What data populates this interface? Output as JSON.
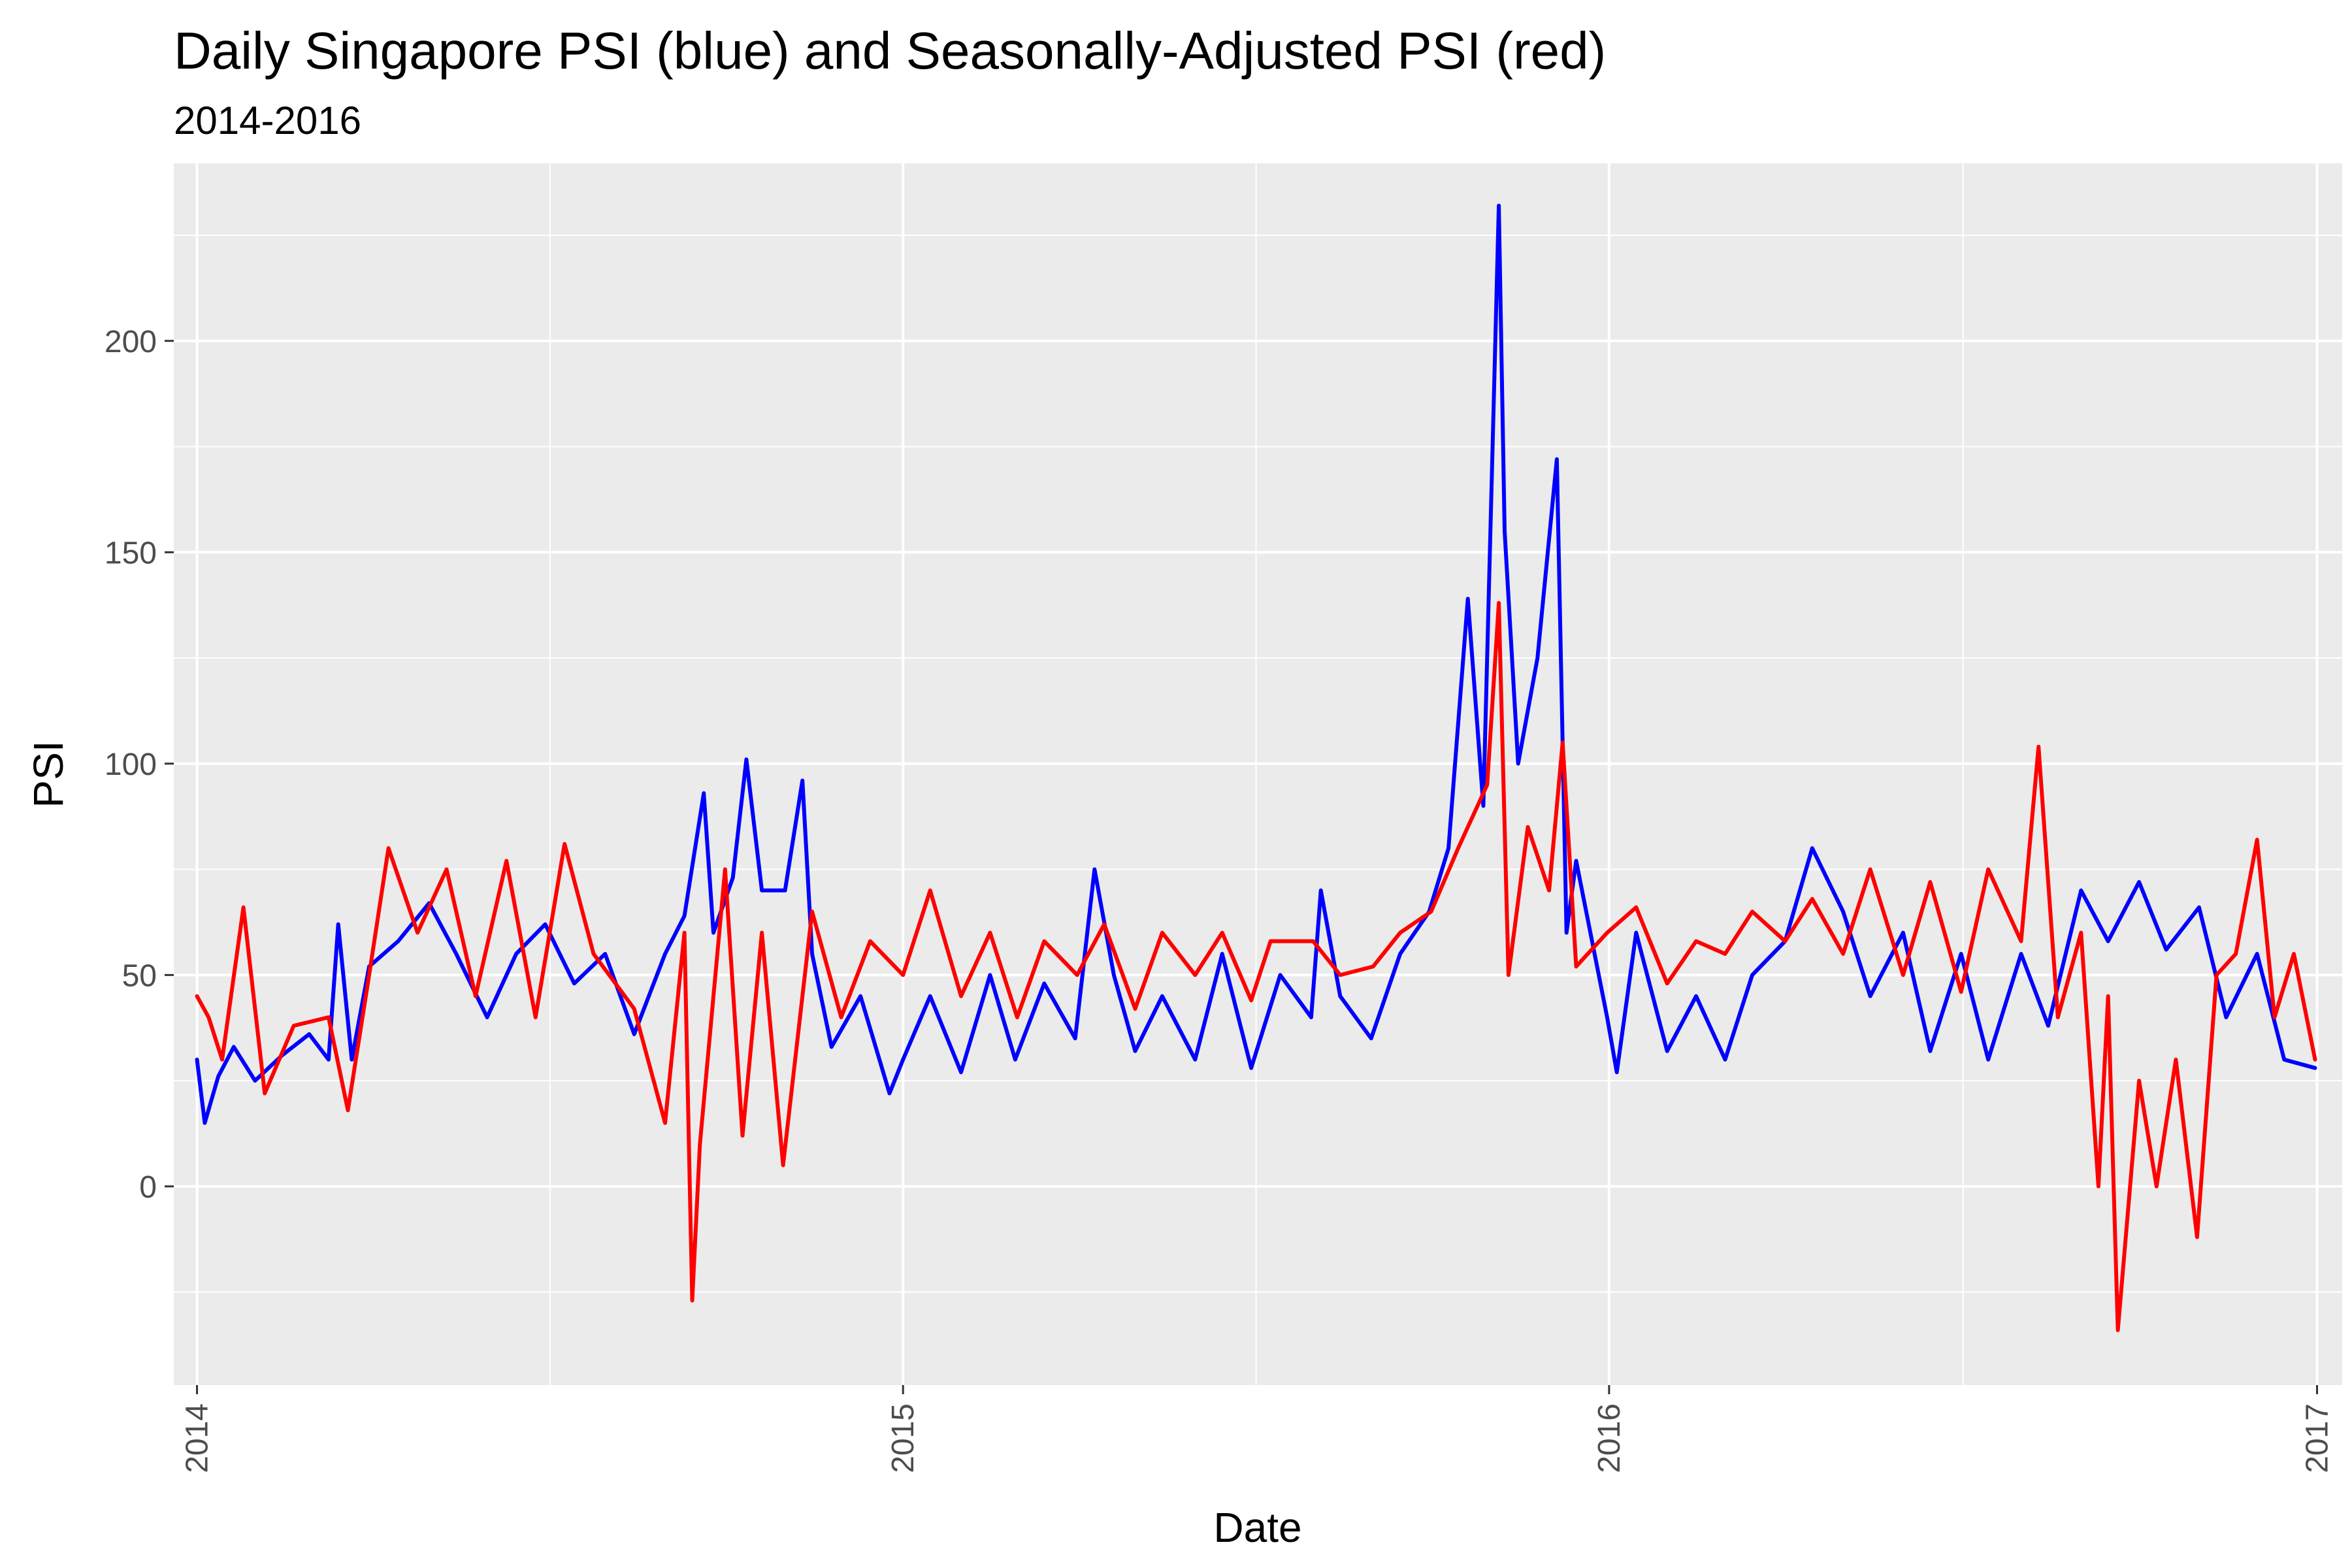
{
  "chart_data": {
    "type": "line",
    "title": "Daily Singapore PSI (blue) and Seasonally-Adjusted PSI (red)",
    "subtitle": "2014-2016",
    "xlabel": "Date",
    "ylabel": "PSI",
    "x_ticks": [
      "2014",
      "2015",
      "2016",
      "2017"
    ],
    "y_ticks": [
      0,
      50,
      100,
      150,
      200
    ],
    "xlim": [
      "2013-12-20",
      "2017-01-14"
    ],
    "ylim": [
      -47,
      242
    ],
    "grid": true,
    "background": "#ebebeb",
    "series": [
      {
        "color": "#0000ff",
        "points": [
          [
            "2014-01-01",
            30
          ],
          [
            "2014-01-05",
            15
          ],
          [
            "2014-01-12",
            26
          ],
          [
            "2014-01-20",
            33
          ],
          [
            "2014-01-31",
            25
          ],
          [
            "2014-02-14",
            31
          ],
          [
            "2014-02-28",
            36
          ],
          [
            "2014-03-10",
            30
          ],
          [
            "2014-03-15",
            62
          ],
          [
            "2014-03-22",
            30
          ],
          [
            "2014-03-31",
            52
          ],
          [
            "2014-04-15",
            58
          ],
          [
            "2014-05-01",
            67
          ],
          [
            "2014-05-15",
            55
          ],
          [
            "2014-05-31",
            40
          ],
          [
            "2014-06-15",
            55
          ],
          [
            "2014-06-30",
            62
          ],
          [
            "2014-07-15",
            48
          ],
          [
            "2014-07-31",
            55
          ],
          [
            "2014-08-15",
            36
          ],
          [
            "2014-08-31",
            55
          ],
          [
            "2014-09-10",
            64
          ],
          [
            "2014-09-20",
            93
          ],
          [
            "2014-09-25",
            60
          ],
          [
            "2014-10-05",
            73
          ],
          [
            "2014-10-12",
            101
          ],
          [
            "2014-10-20",
            70
          ],
          [
            "2014-11-01",
            70
          ],
          [
            "2014-11-10",
            96
          ],
          [
            "2014-11-15",
            55
          ],
          [
            "2014-11-25",
            33
          ],
          [
            "2014-12-10",
            45
          ],
          [
            "2014-12-25",
            22
          ],
          [
            "2015-01-01",
            30
          ],
          [
            "2015-01-15",
            45
          ],
          [
            "2015-01-31",
            27
          ],
          [
            "2015-02-15",
            50
          ],
          [
            "2015-02-28",
            30
          ],
          [
            "2015-03-15",
            48
          ],
          [
            "2015-03-31",
            35
          ],
          [
            "2015-04-10",
            75
          ],
          [
            "2015-04-20",
            50
          ],
          [
            "2015-05-01",
            32
          ],
          [
            "2015-05-15",
            45
          ],
          [
            "2015-06-01",
            30
          ],
          [
            "2015-06-15",
            55
          ],
          [
            "2015-06-30",
            28
          ],
          [
            "2015-07-15",
            50
          ],
          [
            "2015-07-31",
            40
          ],
          [
            "2015-08-05",
            70
          ],
          [
            "2015-08-15",
            45
          ],
          [
            "2015-08-31",
            35
          ],
          [
            "2015-09-15",
            55
          ],
          [
            "2015-09-30",
            65
          ],
          [
            "2015-10-10",
            80
          ],
          [
            "2015-10-20",
            139
          ],
          [
            "2015-10-28",
            90
          ],
          [
            "2015-11-05",
            232
          ],
          [
            "2015-11-08",
            155
          ],
          [
            "2015-11-15",
            100
          ],
          [
            "2015-11-25",
            125
          ],
          [
            "2015-12-05",
            172
          ],
          [
            "2015-12-10",
            60
          ],
          [
            "2015-12-15",
            77
          ],
          [
            "2015-12-31",
            40
          ],
          [
            "2016-01-05",
            27
          ],
          [
            "2016-01-15",
            60
          ],
          [
            "2016-01-31",
            32
          ],
          [
            "2016-02-15",
            45
          ],
          [
            "2016-03-01",
            30
          ],
          [
            "2016-03-15",
            50
          ],
          [
            "2016-04-01",
            58
          ],
          [
            "2016-04-15",
            80
          ],
          [
            "2016-05-01",
            65
          ],
          [
            "2016-05-15",
            45
          ],
          [
            "2016-06-01",
            60
          ],
          [
            "2016-06-15",
            32
          ],
          [
            "2016-07-01",
            55
          ],
          [
            "2016-07-15",
            30
          ],
          [
            "2016-08-01",
            55
          ],
          [
            "2016-08-15",
            38
          ],
          [
            "2016-09-01",
            70
          ],
          [
            "2016-09-15",
            58
          ],
          [
            "2016-10-01",
            72
          ],
          [
            "2016-10-15",
            56
          ],
          [
            "2016-11-01",
            66
          ],
          [
            "2016-11-15",
            40
          ],
          [
            "2016-12-01",
            55
          ],
          [
            "2016-12-15",
            30
          ],
          [
            "2016-12-31",
            28
          ]
        ]
      },
      {
        "color": "#ff0000",
        "points": [
          [
            "2014-01-01",
            45
          ],
          [
            "2014-01-07",
            40
          ],
          [
            "2014-01-14",
            30
          ],
          [
            "2014-01-25",
            66
          ],
          [
            "2014-02-05",
            22
          ],
          [
            "2014-02-20",
            38
          ],
          [
            "2014-03-10",
            40
          ],
          [
            "2014-03-20",
            18
          ],
          [
            "2014-03-31",
            50
          ],
          [
            "2014-04-10",
            80
          ],
          [
            "2014-04-25",
            60
          ],
          [
            "2014-05-10",
            75
          ],
          [
            "2014-05-25",
            45
          ],
          [
            "2014-06-10",
            77
          ],
          [
            "2014-06-25",
            40
          ],
          [
            "2014-07-10",
            81
          ],
          [
            "2014-07-25",
            55
          ],
          [
            "2014-08-15",
            42
          ],
          [
            "2014-08-31",
            15
          ],
          [
            "2014-09-10",
            60
          ],
          [
            "2014-09-14",
            -27
          ],
          [
            "2014-09-18",
            10
          ],
          [
            "2014-10-01",
            75
          ],
          [
            "2014-10-10",
            12
          ],
          [
            "2014-10-20",
            60
          ],
          [
            "2014-10-31",
            5
          ],
          [
            "2014-11-15",
            65
          ],
          [
            "2014-11-30",
            40
          ],
          [
            "2014-12-15",
            58
          ],
          [
            "2015-01-01",
            50
          ],
          [
            "2015-01-15",
            70
          ],
          [
            "2015-01-31",
            45
          ],
          [
            "2015-02-15",
            60
          ],
          [
            "2015-03-01",
            40
          ],
          [
            "2015-03-15",
            58
          ],
          [
            "2015-04-01",
            50
          ],
          [
            "2015-04-15",
            62
          ],
          [
            "2015-05-01",
            42
          ],
          [
            "2015-05-15",
            60
          ],
          [
            "2015-06-01",
            50
          ],
          [
            "2015-06-15",
            60
          ],
          [
            "2015-06-30",
            44
          ],
          [
            "2015-07-10",
            58
          ],
          [
            "2015-08-01",
            58
          ],
          [
            "2015-08-15",
            50
          ],
          [
            "2015-09-01",
            52
          ],
          [
            "2015-09-15",
            60
          ],
          [
            "2015-10-01",
            65
          ],
          [
            "2015-10-15",
            80
          ],
          [
            "2015-10-30",
            95
          ],
          [
            "2015-11-05",
            138
          ],
          [
            "2015-11-10",
            50
          ],
          [
            "2015-11-20",
            85
          ],
          [
            "2015-12-01",
            70
          ],
          [
            "2015-12-08",
            105
          ],
          [
            "2015-12-15",
            52
          ],
          [
            "2015-12-31",
            60
          ],
          [
            "2016-01-15",
            66
          ],
          [
            "2016-01-31",
            48
          ],
          [
            "2016-02-15",
            58
          ],
          [
            "2016-03-01",
            55
          ],
          [
            "2016-03-15",
            65
          ],
          [
            "2016-04-01",
            58
          ],
          [
            "2016-04-15",
            68
          ],
          [
            "2016-05-01",
            55
          ],
          [
            "2016-05-15",
            75
          ],
          [
            "2016-06-01",
            50
          ],
          [
            "2016-06-15",
            72
          ],
          [
            "2016-07-01",
            46
          ],
          [
            "2016-07-15",
            75
          ],
          [
            "2016-08-01",
            58
          ],
          [
            "2016-08-10",
            104
          ],
          [
            "2016-08-20",
            40
          ],
          [
            "2016-09-01",
            60
          ],
          [
            "2016-09-10",
            0
          ],
          [
            "2016-09-15",
            45
          ],
          [
            "2016-09-20",
            -34
          ],
          [
            "2016-10-01",
            25
          ],
          [
            "2016-10-10",
            0
          ],
          [
            "2016-10-20",
            30
          ],
          [
            "2016-10-31",
            -12
          ],
          [
            "2016-11-10",
            50
          ],
          [
            "2016-11-20",
            55
          ],
          [
            "2016-12-01",
            82
          ],
          [
            "2016-12-10",
            40
          ],
          [
            "2016-12-20",
            55
          ],
          [
            "2016-12-31",
            30
          ]
        ]
      }
    ]
  }
}
